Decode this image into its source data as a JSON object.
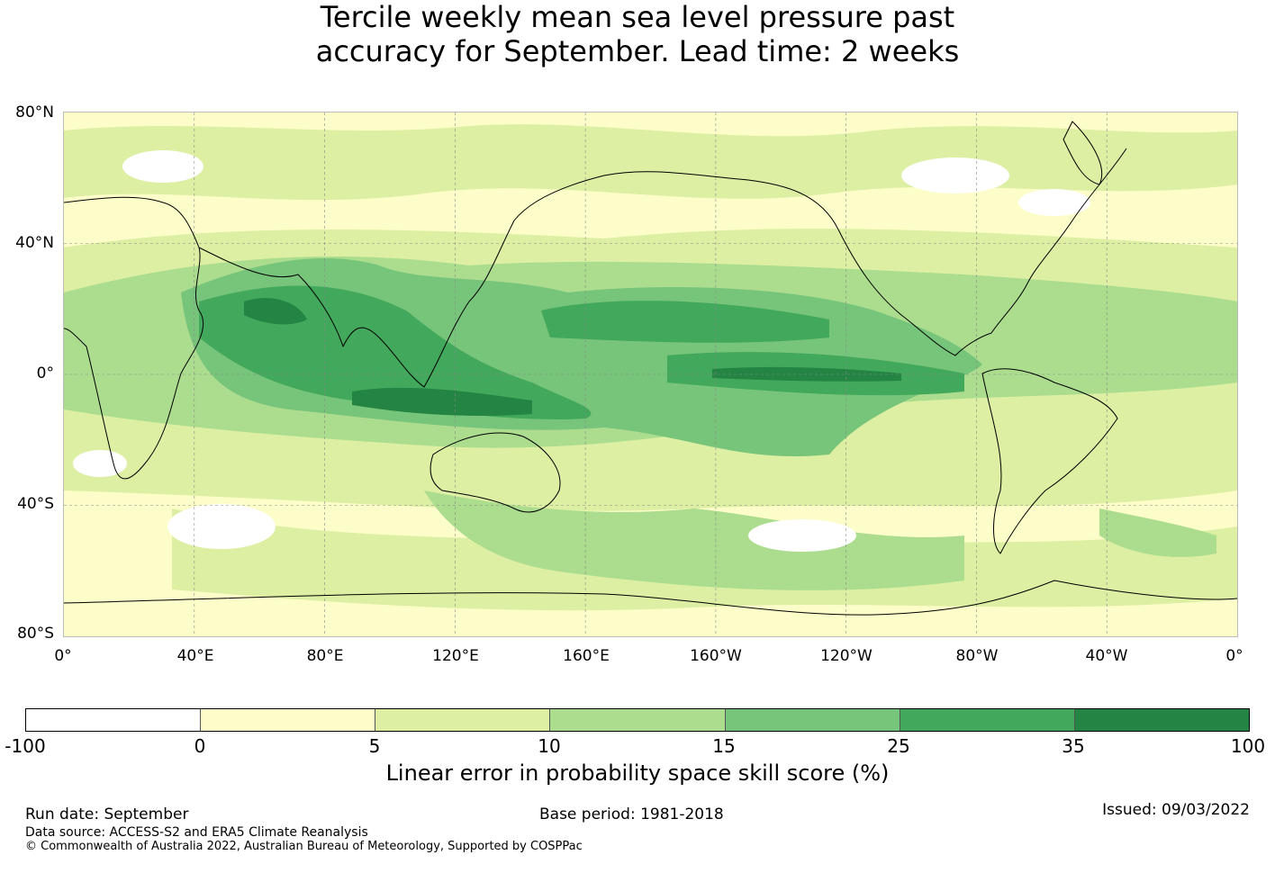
{
  "title_line1": "Tercile weekly mean sea level pressure past",
  "title_line2": "accuracy for September. Lead time: 2 weeks",
  "map": {
    "lat_labels": [
      "80°N",
      "40°N",
      "0°",
      "40°S",
      "80°S"
    ],
    "lon_labels": [
      "0°",
      "40°E",
      "80°E",
      "120°E",
      "160°E",
      "160°W",
      "120°W",
      "80°W",
      "40°W",
      "0°"
    ],
    "colors": {
      "neg": "#ffffff",
      "c0_5": "#fdfdc9",
      "c5_10": "#dcefa3",
      "c10_15": "#acdd8e",
      "c15_25": "#77c47b",
      "c25_35": "#42a85b",
      "c35_100": "#238443"
    }
  },
  "colorbar": {
    "ticks": [
      "-100",
      "0",
      "5",
      "10",
      "15",
      "25",
      "35",
      "100"
    ],
    "colors": [
      "#ffffff",
      "#fdfdc9",
      "#dcefa3",
      "#acdd8e",
      "#77c47b",
      "#42a85b",
      "#238443"
    ],
    "label": "Linear error in probability space skill score (%)"
  },
  "footer": {
    "run_date": "Run date: September",
    "base_period": "Base period: 1981-2018",
    "issued": "Issued: 09/03/2022",
    "data_source": "Data source: ACCESS-S2 and ERA5 Climate Reanalysis",
    "copyright": "© Commonwealth of Australia 2022, Australian Bureau of Meteorology, Supported by COSPPac"
  }
}
